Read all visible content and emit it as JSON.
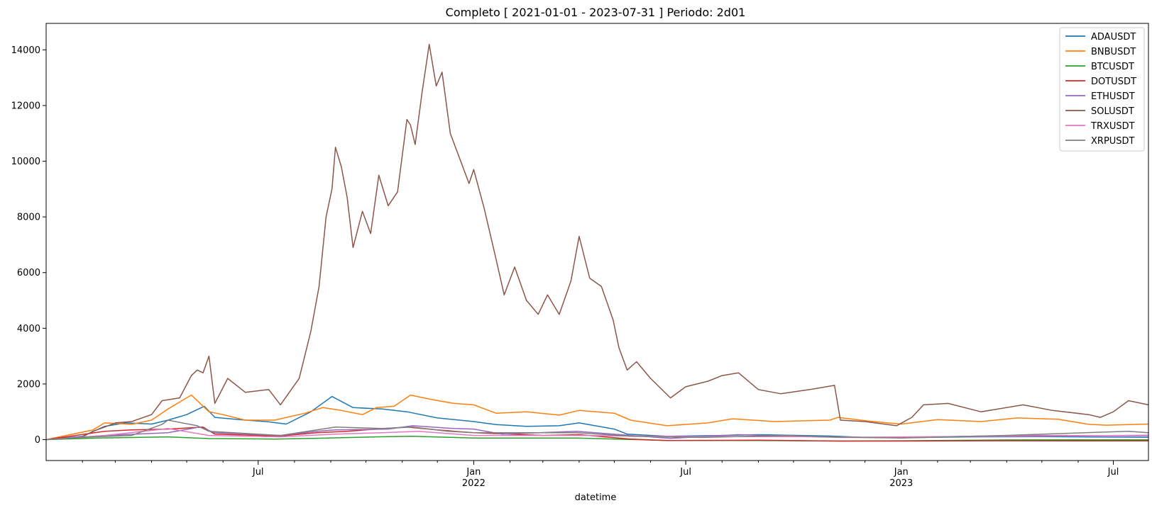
{
  "chart_data": {
    "type": "line",
    "title": "Completo [ 2021-01-01 - 2023-07-31 ] Periodo: 2d01",
    "xlabel": "datetime",
    "ylabel": "",
    "xlim": [
      "2021-01-01",
      "2023-07-31"
    ],
    "ylim": [
      -750,
      14950
    ],
    "yticks": [
      0,
      2000,
      4000,
      6000,
      8000,
      10000,
      12000,
      14000
    ],
    "xticks": [
      {
        "date": "2021-07-01",
        "label": "Jul",
        "sub": ""
      },
      {
        "date": "2022-01-01",
        "label": "Jan",
        "sub": "2022"
      },
      {
        "date": "2022-07-01",
        "label": "Jul",
        "sub": ""
      },
      {
        "date": "2023-01-01",
        "label": "Jan",
        "sub": "2023"
      },
      {
        "date": "2023-07-01",
        "label": "Jul",
        "sub": ""
      }
    ],
    "grid": false,
    "legend_position": "top-right",
    "series": [
      {
        "name": "ADAUSDT",
        "color": "#1f77b4",
        "points": [
          [
            "2021-01-01",
            0
          ],
          [
            "2021-02-01",
            120
          ],
          [
            "2021-02-20",
            480
          ],
          [
            "2021-03-10",
            600
          ],
          [
            "2021-04-01",
            560
          ],
          [
            "2021-04-15",
            700
          ],
          [
            "2021-05-01",
            900
          ],
          [
            "2021-05-16",
            1200
          ],
          [
            "2021-05-25",
            800
          ],
          [
            "2021-06-15",
            720
          ],
          [
            "2021-07-10",
            640
          ],
          [
            "2021-07-25",
            560
          ],
          [
            "2021-08-15",
            1000
          ],
          [
            "2021-09-02",
            1550
          ],
          [
            "2021-09-20",
            1150
          ],
          [
            "2021-10-15",
            1100
          ],
          [
            "2021-11-05",
            1000
          ],
          [
            "2021-12-01",
            780
          ],
          [
            "2022-01-01",
            650
          ],
          [
            "2022-01-20",
            540
          ],
          [
            "2022-02-15",
            480
          ],
          [
            "2022-03-15",
            500
          ],
          [
            "2022-04-01",
            600
          ],
          [
            "2022-05-01",
            380
          ],
          [
            "2022-05-12",
            200
          ],
          [
            "2022-06-15",
            120
          ],
          [
            "2022-08-01",
            150
          ],
          [
            "2022-09-01",
            180
          ],
          [
            "2022-11-01",
            130
          ],
          [
            "2022-12-01",
            80
          ],
          [
            "2023-01-01",
            70
          ],
          [
            "2023-03-01",
            100
          ],
          [
            "2023-05-01",
            110
          ],
          [
            "2023-07-15",
            90
          ],
          [
            "2023-07-31",
            85
          ]
        ]
      },
      {
        "name": "BNBUSDT",
        "color": "#ff7f0e",
        "points": [
          [
            "2021-01-01",
            0
          ],
          [
            "2021-02-10",
            350
          ],
          [
            "2021-02-20",
            600
          ],
          [
            "2021-03-15",
            550
          ],
          [
            "2021-04-01",
            700
          ],
          [
            "2021-04-15",
            1100
          ],
          [
            "2021-05-05",
            1600
          ],
          [
            "2021-05-20",
            1000
          ],
          [
            "2021-06-01",
            900
          ],
          [
            "2021-06-20",
            700
          ],
          [
            "2021-07-15",
            700
          ],
          [
            "2021-08-10",
            950
          ],
          [
            "2021-08-25",
            1150
          ],
          [
            "2021-09-10",
            1050
          ],
          [
            "2021-09-28",
            900
          ],
          [
            "2021-10-10",
            1150
          ],
          [
            "2021-10-25",
            1200
          ],
          [
            "2021-11-08",
            1600
          ],
          [
            "2021-11-25",
            1450
          ],
          [
            "2021-12-15",
            1300
          ],
          [
            "2022-01-01",
            1250
          ],
          [
            "2022-01-20",
            950
          ],
          [
            "2022-02-15",
            1000
          ],
          [
            "2022-03-15",
            880
          ],
          [
            "2022-04-01",
            1050
          ],
          [
            "2022-05-01",
            950
          ],
          [
            "2022-05-15",
            700
          ],
          [
            "2022-06-15",
            500
          ],
          [
            "2022-07-20",
            600
          ],
          [
            "2022-08-10",
            750
          ],
          [
            "2022-09-15",
            650
          ],
          [
            "2022-11-01",
            700
          ],
          [
            "2022-11-08",
            800
          ],
          [
            "2022-12-01",
            680
          ],
          [
            "2022-12-20",
            600
          ],
          [
            "2023-01-01",
            560
          ],
          [
            "2023-02-01",
            720
          ],
          [
            "2023-03-10",
            650
          ],
          [
            "2023-04-10",
            780
          ],
          [
            "2023-05-15",
            730
          ],
          [
            "2023-06-10",
            550
          ],
          [
            "2023-06-25",
            520
          ],
          [
            "2023-07-31",
            560
          ]
        ]
      },
      {
        "name": "BTCUSDT",
        "color": "#2ca02c",
        "points": [
          [
            "2021-01-01",
            0
          ],
          [
            "2021-02-15",
            60
          ],
          [
            "2021-04-15",
            100
          ],
          [
            "2021-05-20",
            40
          ],
          [
            "2021-07-15",
            20
          ],
          [
            "2021-08-20",
            50
          ],
          [
            "2021-10-20",
            110
          ],
          [
            "2021-11-10",
            120
          ],
          [
            "2022-01-01",
            60
          ],
          [
            "2022-03-30",
            60
          ],
          [
            "2022-06-15",
            -30
          ],
          [
            "2022-09-01",
            -30
          ],
          [
            "2022-11-10",
            -50
          ],
          [
            "2023-01-01",
            -40
          ],
          [
            "2023-04-01",
            -10
          ],
          [
            "2023-07-31",
            -5
          ]
        ]
      },
      {
        "name": "DOTUSDT",
        "color": "#d62728",
        "points": [
          [
            "2021-01-01",
            0
          ],
          [
            "2021-02-20",
            300
          ],
          [
            "2021-03-15",
            350
          ],
          [
            "2021-04-15",
            380
          ],
          [
            "2021-05-15",
            450
          ],
          [
            "2021-05-25",
            200
          ],
          [
            "2021-07-20",
            130
          ],
          [
            "2021-08-20",
            250
          ],
          [
            "2021-09-15",
            300
          ],
          [
            "2021-10-10",
            380
          ],
          [
            "2021-11-05",
            450
          ],
          [
            "2021-12-01",
            350
          ],
          [
            "2022-01-01",
            250
          ],
          [
            "2022-03-01",
            150
          ],
          [
            "2022-04-01",
            180
          ],
          [
            "2022-05-15",
            20
          ],
          [
            "2022-06-15",
            -30
          ],
          [
            "2022-09-01",
            -20
          ],
          [
            "2022-11-10",
            -50
          ],
          [
            "2023-01-01",
            -50
          ],
          [
            "2023-04-01",
            -40
          ],
          [
            "2023-07-31",
            -45
          ]
        ]
      },
      {
        "name": "ETHUSDT",
        "color": "#9467bd",
        "points": [
          [
            "2021-01-01",
            0
          ],
          [
            "2021-02-20",
            150
          ],
          [
            "2021-04-15",
            250
          ],
          [
            "2021-05-12",
            450
          ],
          [
            "2021-05-25",
            250
          ],
          [
            "2021-07-20",
            150
          ],
          [
            "2021-08-20",
            300
          ],
          [
            "2021-09-05",
            350
          ],
          [
            "2021-10-20",
            380
          ],
          [
            "2021-11-10",
            500
          ],
          [
            "2021-12-15",
            400
          ],
          [
            "2022-01-01",
            380
          ],
          [
            "2022-01-25",
            200
          ],
          [
            "2022-03-30",
            300
          ],
          [
            "2022-05-15",
            150
          ],
          [
            "2022-06-18",
            50
          ],
          [
            "2022-08-15",
            180
          ],
          [
            "2022-10-01",
            120
          ],
          [
            "2022-11-10",
            80
          ],
          [
            "2023-01-01",
            80
          ],
          [
            "2023-04-15",
            150
          ],
          [
            "2023-07-31",
            140
          ]
        ]
      },
      {
        "name": "SOLUSDT",
        "color": "#8c564b",
        "points": [
          [
            "2021-01-01",
            0
          ],
          [
            "2021-01-20",
            60
          ],
          [
            "2021-02-01",
            100
          ],
          [
            "2021-02-10",
            300
          ],
          [
            "2021-02-20",
            450
          ],
          [
            "2021-03-01",
            600
          ],
          [
            "2021-03-15",
            650
          ],
          [
            "2021-04-01",
            900
          ],
          [
            "2021-04-10",
            1400
          ],
          [
            "2021-04-25",
            1500
          ],
          [
            "2021-05-05",
            2300
          ],
          [
            "2021-05-10",
            2500
          ],
          [
            "2021-05-15",
            2400
          ],
          [
            "2021-05-20",
            3000
          ],
          [
            "2021-05-25",
            1300
          ],
          [
            "2021-06-05",
            2200
          ],
          [
            "2021-06-20",
            1700
          ],
          [
            "2021-07-10",
            1800
          ],
          [
            "2021-07-20",
            1250
          ],
          [
            "2021-08-05",
            2200
          ],
          [
            "2021-08-15",
            3900
          ],
          [
            "2021-08-22",
            5500
          ],
          [
            "2021-08-28",
            8000
          ],
          [
            "2021-09-02",
            9000
          ],
          [
            "2021-09-05",
            10500
          ],
          [
            "2021-09-10",
            9800
          ],
          [
            "2021-09-15",
            8700
          ],
          [
            "2021-09-20",
            6900
          ],
          [
            "2021-09-28",
            8200
          ],
          [
            "2021-10-05",
            7400
          ],
          [
            "2021-10-12",
            9500
          ],
          [
            "2021-10-20",
            8400
          ],
          [
            "2021-10-28",
            8900
          ],
          [
            "2021-11-05",
            11500
          ],
          [
            "2021-11-08",
            11300
          ],
          [
            "2021-11-12",
            10600
          ],
          [
            "2021-11-18",
            12500
          ],
          [
            "2021-11-24",
            14200
          ],
          [
            "2021-11-30",
            12700
          ],
          [
            "2021-12-05",
            13200
          ],
          [
            "2021-12-12",
            11000
          ],
          [
            "2021-12-20",
            10100
          ],
          [
            "2021-12-28",
            9200
          ],
          [
            "2022-01-01",
            9700
          ],
          [
            "2022-01-10",
            8300
          ],
          [
            "2022-01-20",
            6500
          ],
          [
            "2022-01-27",
            5200
          ],
          [
            "2022-02-05",
            6200
          ],
          [
            "2022-02-15",
            5000
          ],
          [
            "2022-02-25",
            4500
          ],
          [
            "2022-03-05",
            5200
          ],
          [
            "2022-03-15",
            4500
          ],
          [
            "2022-03-25",
            5700
          ],
          [
            "2022-04-01",
            7300
          ],
          [
            "2022-04-10",
            5800
          ],
          [
            "2022-04-20",
            5500
          ],
          [
            "2022-04-30",
            4300
          ],
          [
            "2022-05-05",
            3300
          ],
          [
            "2022-05-12",
            2500
          ],
          [
            "2022-05-20",
            2800
          ],
          [
            "2022-06-01",
            2200
          ],
          [
            "2022-06-18",
            1500
          ],
          [
            "2022-07-01",
            1900
          ],
          [
            "2022-07-20",
            2100
          ],
          [
            "2022-08-01",
            2300
          ],
          [
            "2022-08-15",
            2400
          ],
          [
            "2022-09-01",
            1800
          ],
          [
            "2022-09-20",
            1650
          ],
          [
            "2022-10-15",
            1800
          ],
          [
            "2022-11-05",
            1950
          ],
          [
            "2022-11-10",
            700
          ],
          [
            "2022-12-01",
            650
          ],
          [
            "2022-12-28",
            500
          ],
          [
            "2023-01-10",
            800
          ],
          [
            "2023-01-20",
            1250
          ],
          [
            "2023-02-10",
            1300
          ],
          [
            "2023-03-10",
            1000
          ],
          [
            "2023-04-15",
            1250
          ],
          [
            "2023-05-10",
            1050
          ],
          [
            "2023-06-10",
            900
          ],
          [
            "2023-06-20",
            800
          ],
          [
            "2023-07-01",
            1000
          ],
          [
            "2023-07-14",
            1400
          ],
          [
            "2023-07-31",
            1250
          ]
        ]
      },
      {
        "name": "TRXUSDT",
        "color": "#e377c2",
        "points": [
          [
            "2021-01-01",
            0
          ],
          [
            "2021-02-20",
            150
          ],
          [
            "2021-04-05",
            350
          ],
          [
            "2021-04-15",
            400
          ],
          [
            "2021-05-20",
            150
          ],
          [
            "2021-07-20",
            100
          ],
          [
            "2021-09-05",
            200
          ],
          [
            "2021-10-15",
            250
          ],
          [
            "2021-11-15",
            300
          ],
          [
            "2022-01-01",
            150
          ],
          [
            "2022-03-30",
            150
          ],
          [
            "2022-05-15",
            130
          ],
          [
            "2022-07-15",
            110
          ],
          [
            "2022-10-01",
            110
          ],
          [
            "2022-12-01",
            90
          ],
          [
            "2023-01-01",
            100
          ],
          [
            "2023-04-01",
            120
          ],
          [
            "2023-07-31",
            160
          ]
        ]
      },
      {
        "name": "XRPUSDT",
        "color": "#7f7f7f",
        "points": [
          [
            "2021-01-01",
            0
          ],
          [
            "2021-02-10",
            100
          ],
          [
            "2021-03-15",
            150
          ],
          [
            "2021-04-10",
            550
          ],
          [
            "2021-04-15",
            700
          ],
          [
            "2021-05-10",
            500
          ],
          [
            "2021-05-20",
            300
          ],
          [
            "2021-07-20",
            150
          ],
          [
            "2021-08-20",
            350
          ],
          [
            "2021-09-05",
            450
          ],
          [
            "2021-10-15",
            400
          ],
          [
            "2021-11-10",
            450
          ],
          [
            "2021-12-10",
            300
          ],
          [
            "2022-01-01",
            250
          ],
          [
            "2022-03-30",
            250
          ],
          [
            "2022-05-15",
            120
          ],
          [
            "2022-07-15",
            80
          ],
          [
            "2022-09-25",
            150
          ],
          [
            "2022-11-10",
            90
          ],
          [
            "2023-01-01",
            60
          ],
          [
            "2023-03-30",
            150
          ],
          [
            "2023-07-14",
            300
          ],
          [
            "2023-07-31",
            250
          ]
        ]
      }
    ]
  }
}
